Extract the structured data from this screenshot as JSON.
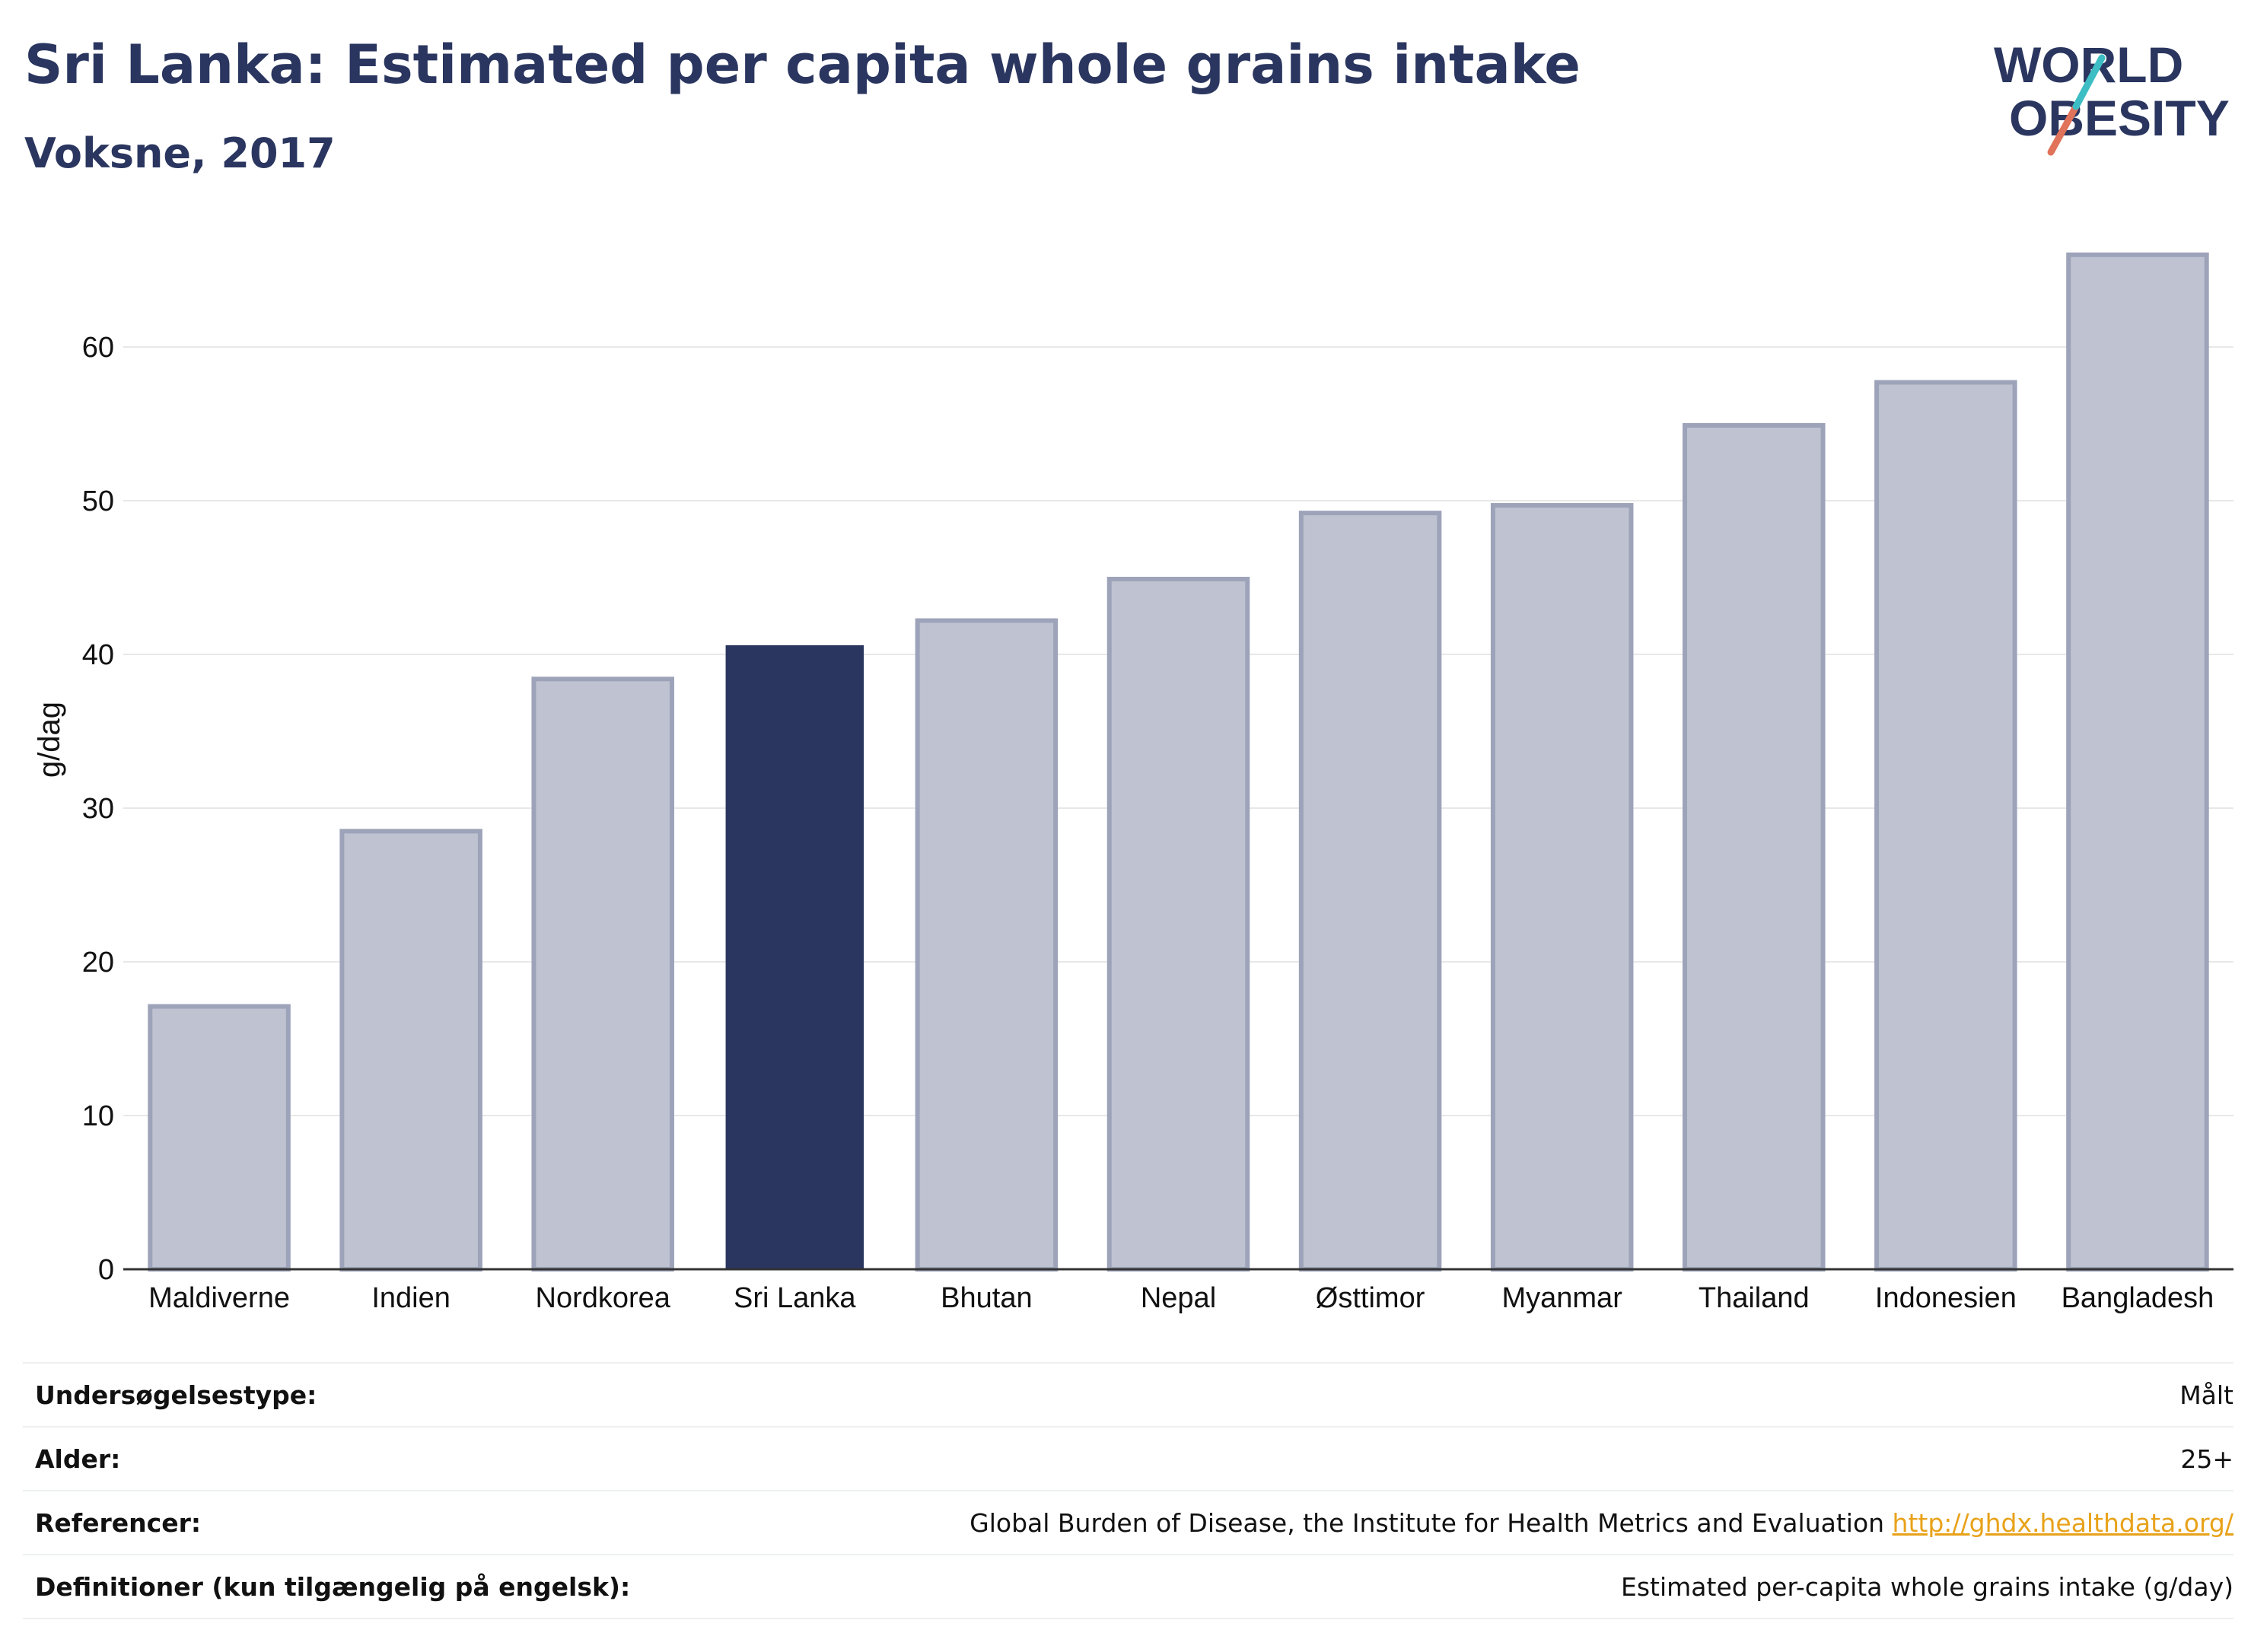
{
  "title": "Sri Lanka: Estimated per capita whole grains intake",
  "subtitle": "Voksne, 2017",
  "logo": {
    "line1": "WORLD",
    "line2": "OBESITY"
  },
  "chart_data": {
    "type": "bar",
    "categories": [
      "Maldiverne",
      "Indien",
      "Nordkorea",
      "Sri Lanka",
      "Bhutan",
      "Nepal",
      "Østtimor",
      "Myanmar",
      "Thailand",
      "Indonesien",
      "Bangladesh"
    ],
    "values": [
      17.1,
      28.5,
      38.4,
      40.6,
      42.2,
      44.9,
      49.2,
      49.7,
      54.9,
      57.7,
      66.0
    ],
    "highlight": "Sri Lanka",
    "ylabel": "g/dag",
    "xlabel": "",
    "ylim": [
      0,
      70
    ],
    "yticks": [
      0,
      10,
      20,
      30,
      40,
      50,
      60
    ],
    "grid": true,
    "colors": {
      "highlight": "#2a365f",
      "bar_fill": "#bfc3d1",
      "bar_stroke": "#9da3b9"
    }
  },
  "info": [
    {
      "label": "Undersøgelsestype:",
      "value": "Målt"
    },
    {
      "label": "Alder:",
      "value": "25+"
    },
    {
      "label": "Referencer:",
      "value": "Global Burden of Disease, the Institute for Health Metrics and Evaluation",
      "link": "http://ghdx.healthdata.org/"
    },
    {
      "label": "Definitioner (kun tilgængelig på engelsk):",
      "value": "Estimated per-capita whole grains intake (g/day)"
    }
  ]
}
